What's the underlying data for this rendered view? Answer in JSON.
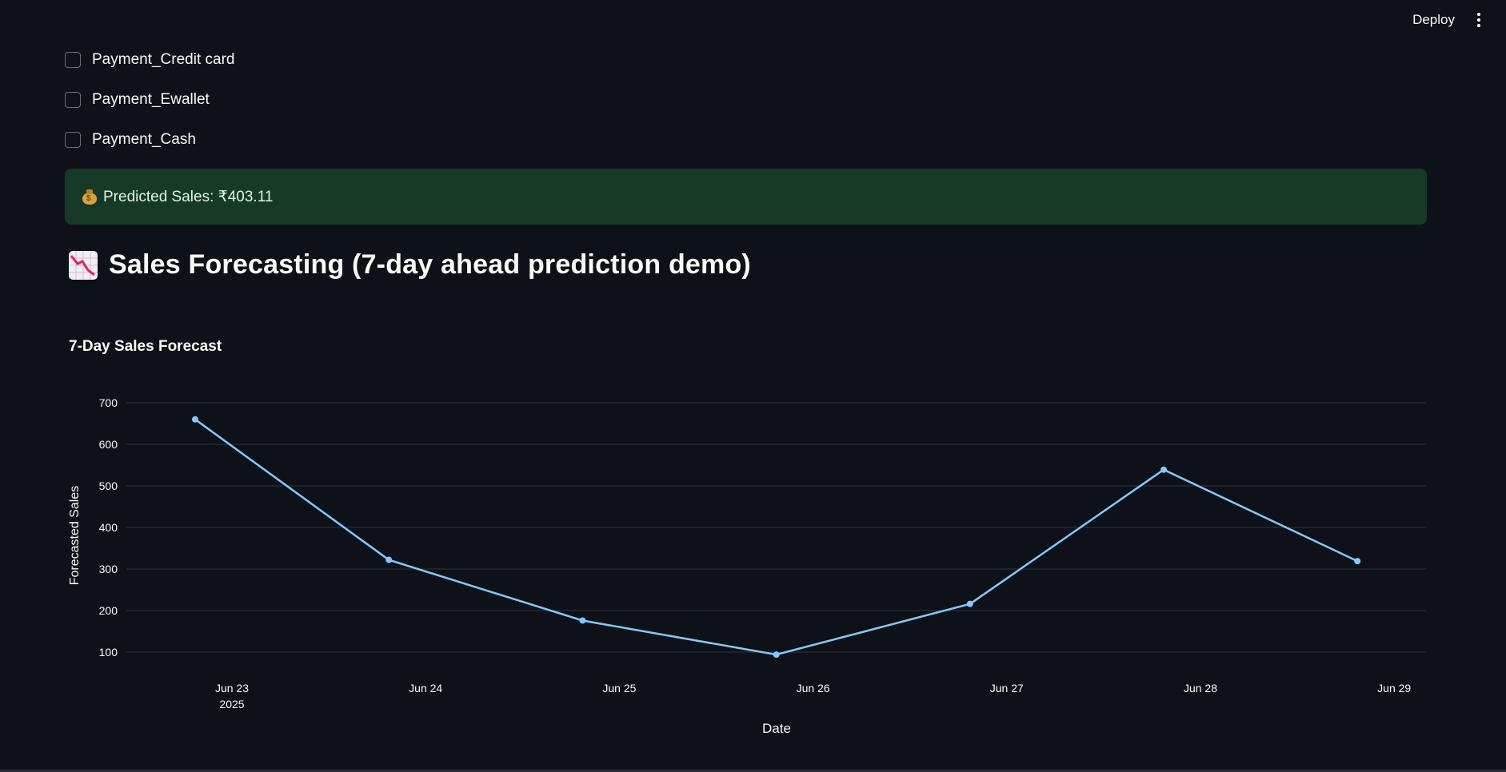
{
  "header": {
    "deploy_label": "Deploy"
  },
  "filters": {
    "checkboxes": [
      {
        "label": "Payment_Credit card",
        "checked": false
      },
      {
        "label": "Payment_Ewallet",
        "checked": false
      },
      {
        "label": "Payment_Cash",
        "checked": false
      }
    ]
  },
  "prediction": {
    "icon": "money-bag-icon",
    "text": "Predicted Sales: ₹403.11",
    "color": "#173928"
  },
  "forecast_section": {
    "icon": "chart-decreasing-icon",
    "heading": "Sales Forecasting (7-day ahead prediction demo)"
  },
  "chart_data": {
    "type": "line",
    "title": "7-Day Sales Forecast",
    "xlabel": "Date",
    "ylabel": "Forecasted Sales",
    "categories": [
      "Jun 23",
      "Jun 24",
      "Jun 25",
      "Jun 26",
      "Jun 27",
      "Jun 28",
      "Jun 29"
    ],
    "year_label": "2025",
    "values": [
      660,
      322,
      176,
      94,
      216,
      539,
      319
    ],
    "y_ticks": [
      100,
      200,
      300,
      400,
      500,
      600,
      700
    ],
    "ylim": [
      40,
      740
    ],
    "grid": true,
    "line_color": "#83c9ff",
    "grid_color": "#31333f"
  }
}
